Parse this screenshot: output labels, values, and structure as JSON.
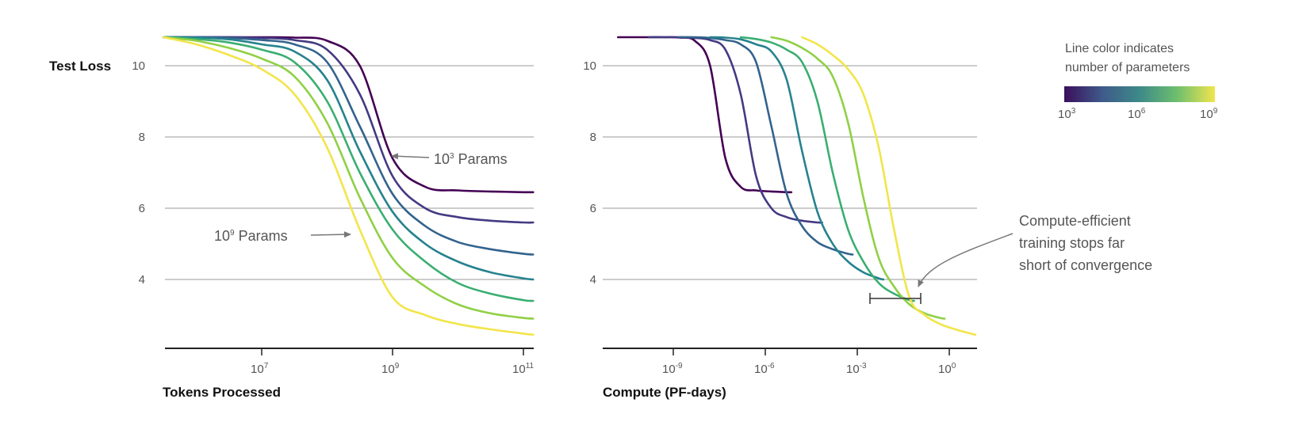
{
  "chart_data": [
    {
      "type": "line",
      "xlabel": "Tokens Processed",
      "ylabel": "Test Loss",
      "xscale": "log",
      "xlim": [
        330000,
        150000000000
      ],
      "ylim": [
        2.05,
        10.9
      ],
      "grid": "horizontal",
      "yticks": [
        "10",
        "8",
        "6",
        "4"
      ],
      "xticks": [
        {
          "base": "10",
          "exp": "7"
        },
        {
          "base": "10",
          "exp": "9"
        },
        {
          "base": "10",
          "exp": "11"
        }
      ],
      "x": [
        316000,
        1000000,
        3160000,
        10000000,
        31600000,
        100000000,
        316000000,
        1000000000,
        3160000000,
        10000000000,
        31600000000,
        100000000000,
        141000000000
      ],
      "series": [
        {
          "params": 1000,
          "color": "#440154",
          "loss": [
            10.8,
            10.8,
            10.8,
            10.8,
            10.79,
            10.7,
            10.0,
            7.4,
            6.6,
            6.5,
            6.47,
            6.45,
            6.45
          ]
        },
        {
          "params": 10000,
          "color": "#433a83",
          "loss": [
            10.8,
            10.8,
            10.8,
            10.78,
            10.72,
            10.45,
            9.2,
            6.9,
            6.0,
            5.75,
            5.65,
            5.6,
            5.6
          ]
        },
        {
          "params": 100000,
          "color": "#33638d",
          "loss": [
            10.8,
            10.8,
            10.78,
            10.72,
            10.6,
            10.1,
            8.3,
            6.4,
            5.5,
            5.05,
            4.85,
            4.72,
            4.7
          ]
        },
        {
          "params": 1000000,
          "color": "#26828e",
          "loss": [
            10.8,
            10.79,
            10.74,
            10.6,
            10.4,
            9.6,
            7.6,
            5.9,
            5.0,
            4.5,
            4.2,
            4.03,
            4.0
          ]
        },
        {
          "params": 10000000,
          "color": "#3aae71",
          "loss": [
            10.8,
            10.75,
            10.65,
            10.45,
            10.1,
            9.0,
            7.0,
            5.4,
            4.5,
            3.9,
            3.6,
            3.42,
            3.4
          ]
        },
        {
          "params": 100000000,
          "color": "#90d046",
          "loss": [
            10.8,
            10.7,
            10.5,
            10.2,
            9.7,
            8.4,
            6.3,
            4.6,
            3.8,
            3.3,
            3.05,
            2.92,
            2.9
          ]
        },
        {
          "params": 1000000000,
          "color": "#f2e54b",
          "loss": [
            10.8,
            10.6,
            10.3,
            9.9,
            9.2,
            7.7,
            5.4,
            3.5,
            3.0,
            2.75,
            2.6,
            2.48,
            2.45
          ]
        }
      ],
      "annotations": [
        {
          "text_base": "10",
          "text_exp": "3",
          "text_rest": " Params"
        },
        {
          "text_base": "10",
          "text_exp": "9",
          "text_rest": " Params"
        }
      ]
    },
    {
      "type": "line",
      "xlabel": "Compute (PF-days)",
      "ylabel": "",
      "xscale": "log",
      "xlim": [
        5e-12,
        8.5
      ],
      "ylim": [
        2.05,
        10.9
      ],
      "grid": "horizontal",
      "yticks": [
        "10",
        "8",
        "6",
        "4"
      ],
      "xticks": [
        {
          "base": "10",
          "exp": "-9"
        },
        {
          "base": "10",
          "exp": "-6"
        },
        {
          "base": "10",
          "exp": "-3"
        },
        {
          "base": "10",
          "exp": "0"
        }
      ],
      "series": [
        {
          "params": 1000,
          "color": "#440154",
          "compute": [
            1.58e-11,
            5.01e-11,
            1.58e-10,
            5.01e-10,
            1.58e-09,
            5.01e-09,
            1.58e-08,
            5.01e-08,
            1.58e-07,
            5.01e-07,
            1.58e-06,
            5.01e-06,
            7.08e-06
          ],
          "loss": [
            10.8,
            10.8,
            10.8,
            10.8,
            10.79,
            10.7,
            10.0,
            7.4,
            6.6,
            6.5,
            6.47,
            6.45,
            6.45
          ]
        },
        {
          "params": 10000,
          "color": "#433a83",
          "compute": [
            1.58e-10,
            5.01e-10,
            1.58e-09,
            5.01e-09,
            1.58e-08,
            5.01e-08,
            1.58e-07,
            5.01e-07,
            1.58e-06,
            5.01e-06,
            1.58e-05,
            5.01e-05,
            7.08e-05
          ],
          "loss": [
            10.8,
            10.8,
            10.8,
            10.78,
            10.72,
            10.45,
            9.2,
            6.9,
            6.0,
            5.75,
            5.65,
            5.6,
            5.6
          ]
        },
        {
          "params": 100000,
          "color": "#33638d",
          "compute": [
            1.58e-09,
            5.01e-09,
            1.58e-08,
            5.01e-08,
            1.58e-07,
            5.01e-07,
            1.58e-06,
            5.01e-06,
            1.58e-05,
            5.01e-05,
            0.000158,
            0.000501,
            0.000708
          ],
          "loss": [
            10.8,
            10.8,
            10.78,
            10.72,
            10.6,
            10.1,
            8.3,
            6.4,
            5.5,
            5.05,
            4.85,
            4.72,
            4.7
          ]
        },
        {
          "params": 1000000,
          "color": "#26828e",
          "compute": [
            1.58e-08,
            5.01e-08,
            1.58e-07,
            5.01e-07,
            1.58e-06,
            5.01e-06,
            1.58e-05,
            5.01e-05,
            0.000158,
            0.000501,
            0.00158,
            0.00501,
            0.00708
          ],
          "loss": [
            10.8,
            10.79,
            10.74,
            10.6,
            10.4,
            9.6,
            7.6,
            5.9,
            5.0,
            4.5,
            4.2,
            4.03,
            4.0
          ]
        },
        {
          "params": 10000000,
          "color": "#3aae71",
          "compute": [
            1.58e-07,
            5.01e-07,
            1.58e-06,
            5.01e-06,
            1.58e-05,
            5.01e-05,
            0.000158,
            0.000501,
            0.00158,
            0.00501,
            0.0158,
            0.0501,
            0.0708
          ],
          "loss": [
            10.8,
            10.75,
            10.65,
            10.45,
            10.1,
            9.0,
            7.0,
            5.4,
            4.5,
            3.9,
            3.6,
            3.42,
            3.4
          ]
        },
        {
          "params": 100000000,
          "color": "#90d046",
          "compute": [
            1.58e-06,
            5.01e-06,
            1.58e-05,
            5.01e-05,
            0.000158,
            0.000501,
            0.00158,
            0.00501,
            0.0158,
            0.0501,
            0.158,
            0.501,
            0.708
          ],
          "loss": [
            10.8,
            10.7,
            10.5,
            10.2,
            9.7,
            8.4,
            6.3,
            4.6,
            3.8,
            3.3,
            3.05,
            2.92,
            2.9
          ]
        },
        {
          "params": 1000000000,
          "color": "#f2e54b",
          "compute": [
            1.58e-05,
            5.01e-05,
            0.000158,
            0.000501,
            0.00158,
            0.00501,
            0.0158,
            0.0501,
            0.158,
            0.501,
            1.58,
            5.01,
            7.08
          ],
          "loss": [
            10.8,
            10.6,
            10.3,
            9.9,
            9.2,
            7.7,
            5.4,
            3.5,
            3.0,
            2.75,
            2.6,
            2.48,
            2.45
          ]
        }
      ],
      "annotations": [
        {
          "lines": [
            "Compute-efficient",
            "training stops far",
            "short of convergence"
          ]
        }
      ]
    }
  ],
  "legend": {
    "title_lines": [
      "Line color indicates",
      "number of parameters"
    ],
    "ticks": [
      {
        "base": "10",
        "exp": "3"
      },
      {
        "base": "10",
        "exp": "6"
      },
      {
        "base": "10",
        "exp": "9"
      }
    ],
    "colors": [
      "#3b0f5c",
      "#3f5a8a",
      "#3d8a88",
      "#6ebf6e",
      "#f1e54e"
    ]
  }
}
